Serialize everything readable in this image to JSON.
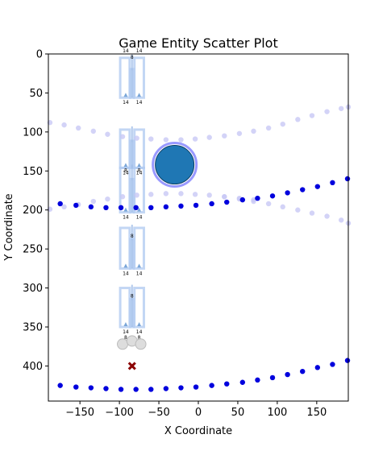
{
  "chart_data": {
    "type": "scatter",
    "title": "Game Entity Scatter Plot",
    "xlabel": "X Coordinate",
    "ylabel": "Y Coordinate",
    "xlim": [
      -190,
      190
    ],
    "ylim": [
      445,
      0
    ],
    "y_inverted": true,
    "xticks": [
      -150,
      -100,
      -50,
      0,
      50,
      100,
      150
    ],
    "yticks": [
      0,
      50,
      100,
      150,
      200,
      250,
      300,
      350,
      400
    ],
    "grid": false,
    "series": [
      {
        "role": "faint-dots-upper",
        "color": "#c8c8f5",
        "x": [
          -188,
          -170,
          -152,
          -133,
          -115,
          -96,
          -78,
          -60,
          -41,
          -22,
          -4,
          14,
          33,
          52,
          70,
          89,
          107,
          126,
          144,
          163,
          181,
          190
        ],
        "y": [
          88,
          91,
          95,
          99,
          103,
          106,
          108,
          109,
          110,
          110,
          109,
          107,
          105,
          102,
          99,
          95,
          90,
          84,
          79,
          74,
          70,
          68
        ]
      },
      {
        "role": "faint-dots-lower-rising",
        "color": "#c8c8f5",
        "x": [
          -188,
          -170,
          -152,
          -133,
          -115,
          -96,
          -78,
          -60,
          -41,
          -22,
          -4,
          14,
          33,
          52,
          70
        ],
        "y": [
          199,
          196,
          193,
          189,
          186,
          183,
          181,
          180,
          179,
          179,
          180,
          181,
          183,
          185,
          187
        ]
      },
      {
        "role": "faint-dots-lower-falling",
        "color": "#c8c8f5",
        "x": [
          33,
          52,
          70,
          89,
          107,
          126,
          144,
          163,
          181,
          190
        ],
        "y": [
          183,
          186,
          189,
          192,
          196,
          200,
          204,
          208,
          213,
          217
        ]
      },
      {
        "role": "blue-dots-middle",
        "color": "#0000dd",
        "x": [
          -175,
          -155,
          -136,
          -117,
          -98,
          -79,
          -60,
          -41,
          -22,
          -3,
          17,
          36,
          56,
          75,
          94,
          113,
          132,
          151,
          170,
          189
        ],
        "y": [
          192,
          194,
          196,
          197,
          197,
          197,
          197,
          196,
          195,
          194,
          192,
          190,
          187,
          185,
          182,
          178,
          174,
          170,
          165,
          160
        ]
      },
      {
        "role": "blue-dots-bottom",
        "color": "#0000dd",
        "x": [
          -175,
          -155,
          -136,
          -117,
          -98,
          -79,
          -60,
          -41,
          -22,
          -3,
          17,
          36,
          56,
          75,
          94,
          113,
          132,
          151,
          170,
          189
        ],
        "y": [
          425,
          427,
          428,
          429,
          430,
          430,
          430,
          429,
          428,
          427,
          425,
          423,
          421,
          418,
          415,
          411,
          407,
          402,
          398,
          393
        ]
      }
    ],
    "big_circle": {
      "x": -30,
      "y": 142,
      "color": "#1f77b4",
      "ring_color": "#8080ff"
    },
    "grey_circles": [
      {
        "x": -96,
        "y": 372
      },
      {
        "x": -84,
        "y": 368
      },
      {
        "x": -73,
        "y": 372
      }
    ],
    "x_marker": {
      "x": -84,
      "y": 400,
      "color": "#8b0000"
    },
    "rect_groups": [
      {
        "y_top": 5,
        "y_bottom": 56,
        "top_labels": [
          "14",
          "14"
        ],
        "mid_label": "8",
        "bottom_labels": [
          "14",
          "14"
        ]
      },
      {
        "y_top": 97,
        "y_bottom": 146,
        "top_labels": [],
        "mid_label": "",
        "bottom_labels": [
          "14",
          "14"
        ]
      },
      {
        "y_top": 146,
        "y_bottom": 203,
        "top_labels": [
          "8",
          "8"
        ],
        "mid_label": "",
        "bottom_labels": [
          "14",
          "14"
        ]
      },
      {
        "y_top": 223,
        "y_bottom": 275,
        "top_labels": [],
        "mid_label": "8",
        "bottom_labels": [
          "14",
          "14"
        ]
      },
      {
        "y_top": 300,
        "y_bottom": 350,
        "top_labels": [],
        "mid_label": "8",
        "bottom_labels": [
          "14",
          "14"
        ]
      }
    ],
    "bottom_sub_labels": [
      "8",
      "8"
    ]
  }
}
